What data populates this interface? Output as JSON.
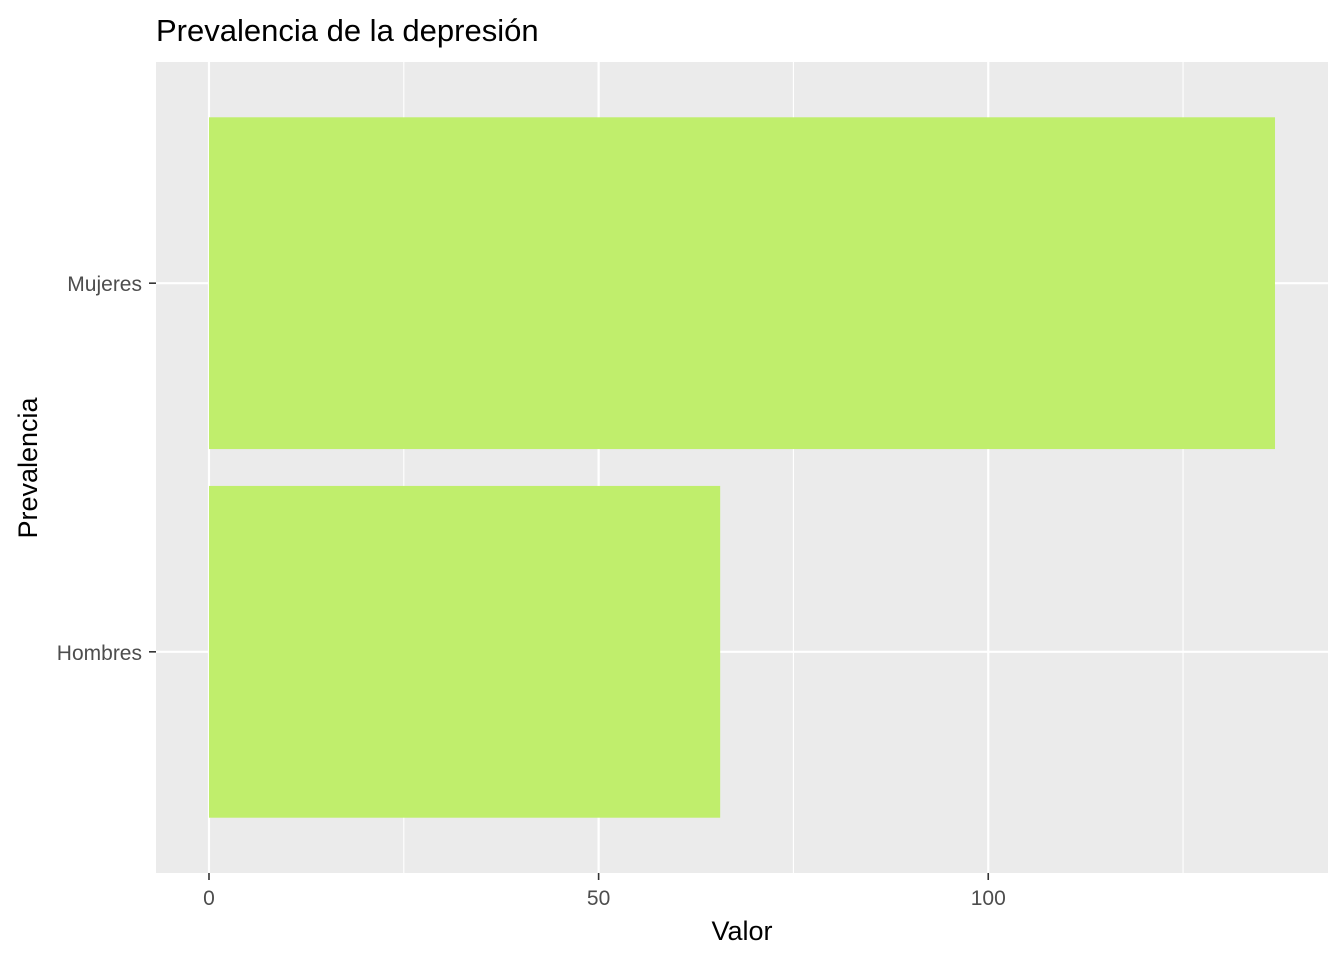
{
  "chart_data": {
    "type": "bar",
    "orientation": "horizontal",
    "title": "Prevalencia de la depresión",
    "xlabel": "Valor",
    "ylabel": "Prevalencia",
    "categories": [
      "Hombres",
      "Mujeres"
    ],
    "values": [
      65.6,
      136.8
    ],
    "xlim": [
      -6.8,
      143.6
    ],
    "xticks": [
      0,
      50,
      100
    ],
    "xtick_labels": [
      "0",
      "50",
      "100"
    ],
    "grid": true,
    "legend": "none",
    "colors": {
      "bar": "#C0EE6C",
      "panel": "#EBEBEB",
      "grid": "#FFFFFF",
      "tick": "#333333"
    }
  }
}
